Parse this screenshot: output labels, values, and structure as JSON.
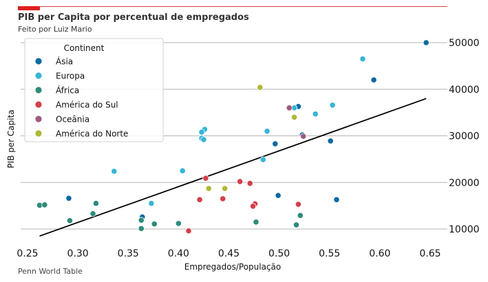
{
  "chart_data": {
    "type": "scatter",
    "title": "PIB per Capita por percentual de empregados",
    "subtitle": "Feito por Luiz Mario",
    "xlabel": "Empregados/População",
    "ylabel": "PIB per Capita",
    "source": "Penn World Table",
    "xlim": [
      0.245,
      0.665
    ],
    "ylim": [
      6500,
      55000
    ],
    "xticks": [
      0.25,
      0.3,
      0.35,
      0.4,
      0.45,
      0.5,
      0.55,
      0.6,
      0.65
    ],
    "xtick_labels": [
      "0.25",
      "0.30",
      "0.35",
      "0.40",
      "0.45",
      "0.50",
      "0.55",
      "0.60",
      "0.65"
    ],
    "yticks": [
      10000,
      20000,
      30000,
      40000,
      50000
    ],
    "ytick_labels": [
      "10000",
      "20000",
      "30000",
      "40000",
      "50000"
    ],
    "y_axis_side": "right",
    "grid": "horizontal",
    "legend": {
      "title": "Continent",
      "placement": "top-left"
    },
    "series": [
      {
        "name": "Ásia",
        "color": "#0a6aa1",
        "points": [
          [
            0.646,
            50000
          ],
          [
            0.594,
            42000
          ],
          [
            0.519,
            36300
          ],
          [
            0.523,
            30200
          ],
          [
            0.496,
            28300
          ],
          [
            0.551,
            28900
          ],
          [
            0.557,
            16300
          ],
          [
            0.499,
            17200
          ],
          [
            0.291,
            16600
          ],
          [
            0.364,
            12600
          ]
        ]
      },
      {
        "name": "Europa",
        "color": "#37b5d6",
        "points": [
          [
            0.583,
            46500
          ],
          [
            0.553,
            36600
          ],
          [
            0.536,
            34700
          ],
          [
            0.515,
            36000
          ],
          [
            0.488,
            31000
          ],
          [
            0.426,
            31400
          ],
          [
            0.423,
            30800
          ],
          [
            0.423,
            29500
          ],
          [
            0.425,
            29200
          ],
          [
            0.336,
            22400
          ],
          [
            0.404,
            22500
          ],
          [
            0.484,
            24900
          ],
          [
            0.373,
            15500
          ]
        ]
      },
      {
        "name": "África",
        "color": "#2e8b7a",
        "points": [
          [
            0.262,
            15100
          ],
          [
            0.267,
            15200
          ],
          [
            0.318,
            15500
          ],
          [
            0.315,
            13300
          ],
          [
            0.292,
            11800
          ],
          [
            0.363,
            11900
          ],
          [
            0.376,
            11100
          ],
          [
            0.363,
            10100
          ],
          [
            0.4,
            11200
          ],
          [
            0.477,
            11500
          ],
          [
            0.521,
            12900
          ],
          [
            0.517,
            10900
          ]
        ]
      },
      {
        "name": "América do Sul",
        "color": "#d43f4a",
        "points": [
          [
            0.427,
            20900
          ],
          [
            0.461,
            20200
          ],
          [
            0.471,
            19800
          ],
          [
            0.421,
            16300
          ],
          [
            0.444,
            16500
          ],
          [
            0.476,
            15400
          ],
          [
            0.474,
            14900
          ],
          [
            0.519,
            15300
          ],
          [
            0.41,
            9600
          ]
        ]
      },
      {
        "name": "Oceânia",
        "color": "#9e5a7e",
        "points": [
          [
            0.51,
            36000
          ],
          [
            0.524,
            29900
          ]
        ]
      },
      {
        "name": "América do Norte",
        "color": "#b0b836",
        "points": [
          [
            0.481,
            40400
          ],
          [
            0.515,
            34000
          ],
          [
            0.43,
            18700
          ],
          [
            0.446,
            18700
          ]
        ]
      }
    ],
    "trend_line": {
      "color": "#000000",
      "from": [
        0.262,
        8500
      ],
      "to": [
        0.646,
        38000
      ]
    }
  }
}
